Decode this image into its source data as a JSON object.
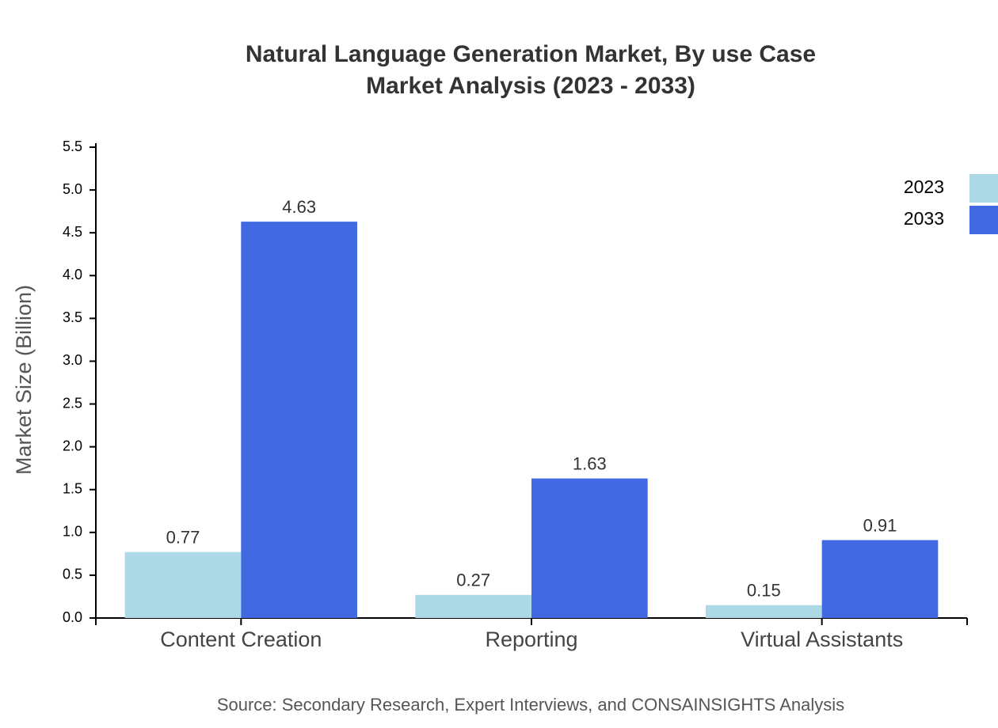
{
  "chart_data": {
    "type": "bar",
    "title": "Natural Language Generation Market, By use Case",
    "subtitle": "Market Analysis (2023 - 2033)",
    "y_label": "Market Size (Billion)",
    "source": "Source: Secondary Research, Expert Interviews, and CONSAINSIGHTS Analysis",
    "categories": [
      "Content Creation",
      "Reporting",
      "Virtual Assistants"
    ],
    "series": [
      {
        "name": "2023",
        "color": "#add8e6",
        "values": [
          0.77,
          0.27,
          0.15
        ]
      },
      {
        "name": "2033",
        "color": "#4169e1",
        "values": [
          4.63,
          1.63,
          0.91
        ]
      }
    ],
    "ylim": [
      0,
      5.5
    ],
    "yticks": [
      {
        "value": 0,
        "label": "0.0"
      },
      0.5,
      {
        "value": 1,
        "label": "1.0"
      },
      1.5,
      {
        "value": 2,
        "label": "2.0"
      },
      2.5,
      {
        "value": 3,
        "label": "3.0"
      },
      3.5,
      {
        "value": 4,
        "label": "4.0"
      },
      4.5,
      {
        "value": 5,
        "label": "5.0"
      },
      5.5
    ],
    "legend": "top-right"
  }
}
